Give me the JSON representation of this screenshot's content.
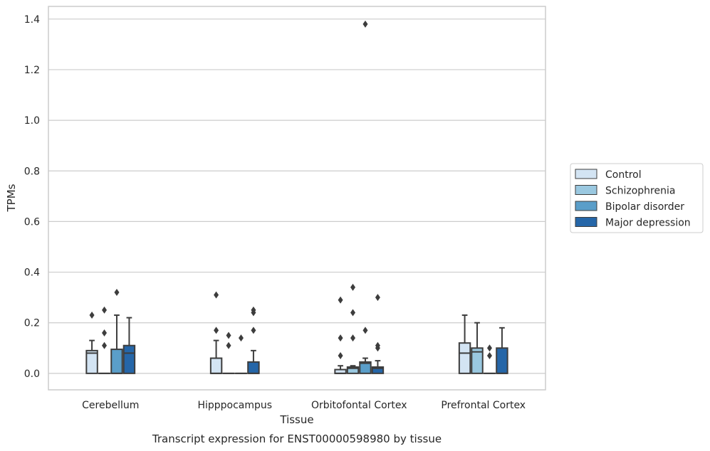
{
  "chart_data": {
    "type": "box",
    "caption": "Transcript expression for ENST00000598980 by tissue",
    "xlabel": "Tissue",
    "ylabel": "TPMs",
    "ylim": [
      -0.065,
      1.45
    ],
    "yticks": [
      "0.0",
      "0.2",
      "0.4",
      "0.6",
      "0.8",
      "1.0",
      "1.2",
      "1.4"
    ],
    "grid": true,
    "legend_position": "right",
    "categories": [
      "Cerebellum",
      "Hipppocampus",
      "Orbitofontal Cortex",
      "Prefrontal Cortex"
    ],
    "series": [
      {
        "name": "Control",
        "color": "#d3e4f3",
        "boxes": [
          {
            "q1": 0.0,
            "median": 0.08,
            "q3": 0.09,
            "whisker_low": 0.0,
            "whisker_high": 0.13,
            "outliers": [
              0.23
            ]
          },
          {
            "q1": 0.0,
            "median": 0.0,
            "q3": 0.06,
            "whisker_low": 0.0,
            "whisker_high": 0.13,
            "outliers": [
              0.17,
              0.31
            ]
          },
          {
            "q1": 0.0,
            "median": 0.0,
            "q3": 0.015,
            "whisker_low": 0.0,
            "whisker_high": 0.03,
            "outliers": [
              0.07,
              0.14,
              0.29
            ]
          },
          {
            "q1": 0.0,
            "median": 0.08,
            "q3": 0.12,
            "whisker_low": 0.0,
            "whisker_high": 0.23,
            "outliers": []
          }
        ]
      },
      {
        "name": "Schizophrenia",
        "color": "#9ac8e0",
        "boxes": [
          {
            "q1": 0.0,
            "median": 0.0,
            "q3": 0.0,
            "whisker_low": 0.0,
            "whisker_high": 0.0,
            "outliers": [
              0.11,
              0.16,
              0.25
            ]
          },
          {
            "q1": 0.0,
            "median": 0.0,
            "q3": 0.0,
            "whisker_low": 0.0,
            "whisker_high": 0.0,
            "outliers": [
              0.11,
              0.15
            ]
          },
          {
            "q1": 0.0,
            "median": 0.02,
            "q3": 0.025,
            "whisker_low": 0.0,
            "whisker_high": 0.03,
            "outliers": [
              0.14,
              0.24,
              0.34
            ]
          },
          {
            "q1": 0.0,
            "median": 0.085,
            "q3": 0.1,
            "whisker_low": 0.0,
            "whisker_high": 0.2,
            "outliers": []
          }
        ]
      },
      {
        "name": "Bipolar disorder",
        "color": "#5a9ec9",
        "boxes": [
          {
            "q1": 0.0,
            "median": 0.0,
            "q3": 0.095,
            "whisker_low": 0.0,
            "whisker_high": 0.23,
            "outliers": [
              0.32
            ]
          },
          {
            "q1": 0.0,
            "median": 0.0,
            "q3": 0.0,
            "whisker_low": 0.0,
            "whisker_high": 0.0,
            "outliers": [
              0.14
            ]
          },
          {
            "q1": 0.0,
            "median": 0.04,
            "q3": 0.045,
            "whisker_low": 0.0,
            "whisker_high": 0.06,
            "outliers": [
              0.17,
              1.38
            ]
          },
          {
            "q1": 0.0,
            "median": 0.0,
            "q3": 0.0,
            "whisker_low": 0.0,
            "whisker_high": 0.0,
            "outliers": [
              0.07,
              0.1
            ]
          }
        ]
      },
      {
        "name": "Major depression",
        "color": "#2566a8",
        "boxes": [
          {
            "q1": 0.0,
            "median": 0.08,
            "q3": 0.11,
            "whisker_low": 0.0,
            "whisker_high": 0.22,
            "outliers": []
          },
          {
            "q1": 0.0,
            "median": 0.0,
            "q3": 0.045,
            "whisker_low": 0.0,
            "whisker_high": 0.09,
            "outliers": [
              0.17,
              0.24,
              0.25
            ]
          },
          {
            "q1": 0.0,
            "median": 0.02,
            "q3": 0.025,
            "whisker_low": 0.0,
            "whisker_high": 0.05,
            "outliers": [
              0.1,
              0.11,
              0.3
            ]
          },
          {
            "q1": 0.0,
            "median": 0.0,
            "q3": 0.1,
            "whisker_low": 0.0,
            "whisker_high": 0.18,
            "outliers": []
          }
        ]
      }
    ]
  }
}
